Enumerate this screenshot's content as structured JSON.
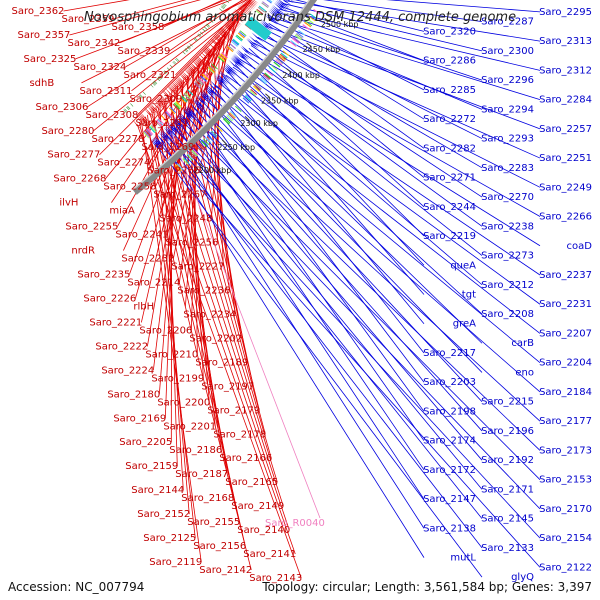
{
  "title": "Novosphingobium aromaticivorans DSM 12444, complete genome",
  "footer": {
    "accession": "Accession: NC_007794",
    "summary": "Topology: circular; Length: 3,561,584 bp; Genes: 3,397"
  },
  "colors": {
    "forward": "#e00000",
    "reverse": "#0000e0",
    "rna": "#f080c0",
    "backbone": "#888888"
  },
  "tick_labels": [
    "2500 kbp",
    "2450 kbp",
    "2400 kbp",
    "2350 kbp",
    "2300 kbp",
    "2250 kbp",
    "2200 kbp"
  ],
  "left_labels": [
    "Saro_2362",
    "Saro_2359",
    "Saro_2358",
    "Saro_2357",
    "Saro_2342",
    "Saro_2339",
    "Saro_2325",
    "Saro_2324",
    "Saro_2321",
    "sdhB",
    "Saro_2311",
    "Saro_2309",
    "Saro_2306",
    "Saro_2308",
    "Saro_2281",
    "Saro_2280",
    "Saro_2278",
    "Saro_2269",
    "Saro_2277",
    "Saro_2274",
    "Saro_2265",
    "Saro_2268",
    "Saro_2258",
    "Saro_2267",
    "ilvH",
    "miaA",
    "Saro_2248",
    "Saro_2255",
    "Saro_2241",
    "Saro_2256",
    "nrdR",
    "Saro_2232",
    "Saro_2227",
    "Saro_2235",
    "Saro_2214",
    "Saro_2236",
    "Saro_2226",
    "rlbH",
    "Saro_2234",
    "Saro_2221",
    "Saro_2206",
    "Saro_2202",
    "Saro_2222",
    "Saro_2210",
    "Saro_2189",
    "Saro_2224",
    "Saro_2199",
    "Saro_2197",
    "Saro_2180",
    "Saro_2200",
    "Saro_2179",
    "Saro_2169",
    "Saro_2201",
    "Saro_2178",
    "Saro_2205",
    "Saro_2186",
    "Saro_2166",
    "Saro_2159",
    "Saro_2187",
    "Saro_2165",
    "Saro_2144",
    "Saro_2168",
    "Saro_2149",
    "Saro_2152",
    "Saro_2155",
    "Saro_2140",
    "Saro_2125",
    "Saro_2156",
    "Saro_2141",
    "Saro_2119",
    "Saro_2142",
    "Saro_2143"
  ],
  "right_labels": [
    "Saro_2295",
    "Saro_2287",
    "Saro_2320",
    "Saro_2313",
    "Saro_2300",
    "Saro_2286",
    "Saro_2312",
    "Saro_2296",
    "Saro_2285",
    "Saro_2284",
    "Saro_2294",
    "Saro_2272",
    "Saro_2257",
    "Saro_2293",
    "Saro_2282",
    "Saro_2251",
    "Saro_2283",
    "Saro_2271",
    "Saro_2249",
    "Saro_2270",
    "Saro_2244",
    "Saro_2266",
    "Saro_2238",
    "Saro_2219",
    "coaD",
    "Saro_2273",
    "queA",
    "Saro_2237",
    "Saro_2212",
    "tgt",
    "Saro_2231",
    "Saro_2208",
    "greA",
    "Saro_2207",
    "carB",
    "Saro_2217",
    "Saro_2204",
    "eno",
    "Saro_2203",
    "Saro_2184",
    "Saro_2215",
    "Saro_2198",
    "Saro_2177",
    "Saro_2196",
    "Saro_2174",
    "Saro_2173",
    "Saro_2192",
    "Saro_2172",
    "Saro_2153",
    "Saro_2171",
    "Saro_2147",
    "Saro_2170",
    "Saro_2145",
    "Saro_2138",
    "Saro_2154",
    "Saro_2133",
    "mutL",
    "Saro_2122",
    "glyQ"
  ],
  "rna_label": "Saro_R0040"
}
